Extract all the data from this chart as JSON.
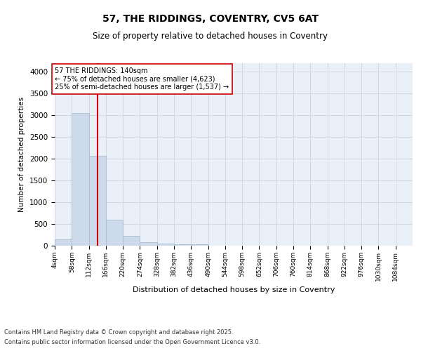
{
  "title_line1": "57, THE RIDDINGS, COVENTRY, CV5 6AT",
  "title_line2": "Size of property relative to detached houses in Coventry",
  "xlabel": "Distribution of detached houses by size in Coventry",
  "ylabel": "Number of detached properties",
  "footer_line1": "Contains HM Land Registry data © Crown copyright and database right 2025.",
  "footer_line2": "Contains public sector information licensed under the Open Government Licence v3.0.",
  "annotation_line1": "57 THE RIDDINGS: 140sqm",
  "annotation_line2": "← 75% of detached houses are smaller (4,623)",
  "annotation_line3": "25% of semi-detached houses are larger (1,537) →",
  "bar_color": "#ccdaeb",
  "bar_edge_color": "#aabccc",
  "red_line_color": "#cc0000",
  "red_line_x": 140,
  "categories": [
    "4sqm",
    "58sqm",
    "112sqm",
    "166sqm",
    "220sqm",
    "274sqm",
    "328sqm",
    "382sqm",
    "436sqm",
    "490sqm",
    "544sqm",
    "598sqm",
    "652sqm",
    "706sqm",
    "760sqm",
    "814sqm",
    "868sqm",
    "922sqm",
    "976sqm",
    "1030sqm",
    "1084sqm"
  ],
  "bin_starts": [
    4,
    58,
    112,
    166,
    220,
    274,
    328,
    382,
    436,
    490,
    544,
    598,
    652,
    706,
    760,
    814,
    868,
    922,
    976,
    1030,
    1084
  ],
  "bin_width": 54,
  "values": [
    150,
    3060,
    2075,
    590,
    225,
    75,
    55,
    40,
    30,
    0,
    0,
    0,
    0,
    0,
    0,
    0,
    0,
    0,
    0,
    0,
    0
  ],
  "ylim": [
    0,
    4200
  ],
  "yticks": [
    0,
    500,
    1000,
    1500,
    2000,
    2500,
    3000,
    3500,
    4000
  ],
  "grid_color": "#d0d8e4",
  "background_color": "#eaf0f8"
}
